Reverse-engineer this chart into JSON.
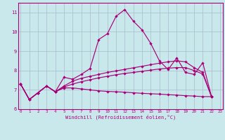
{
  "xlabel": "Windchill (Refroidissement éolien,°C)",
  "xlim": [
    -0.3,
    23.3
  ],
  "ylim": [
    6.0,
    11.5
  ],
  "xticks": [
    0,
    1,
    2,
    3,
    4,
    5,
    6,
    7,
    8,
    9,
    10,
    11,
    12,
    13,
    14,
    15,
    16,
    17,
    18,
    19,
    20,
    21,
    22,
    23
  ],
  "yticks": [
    6,
    7,
    8,
    9,
    10,
    11
  ],
  "bg_color": "#c8e8ec",
  "grid_color": "#aabbcc",
  "line_color": "#aa0077",
  "line1_x": [
    0,
    1,
    2,
    3,
    4,
    5,
    6,
    7,
    8,
    9,
    10,
    11,
    12,
    13,
    14,
    15,
    16,
    17,
    18,
    19,
    20,
    21,
    22
  ],
  "line1_y": [
    7.3,
    6.5,
    6.85,
    7.2,
    6.9,
    7.65,
    7.55,
    7.8,
    8.1,
    9.6,
    9.9,
    10.8,
    11.15,
    10.55,
    10.1,
    9.4,
    8.5,
    8.05,
    8.65,
    7.9,
    7.8,
    8.4,
    6.65
  ],
  "line2_x": [
    0,
    1,
    2,
    3,
    4,
    5,
    6,
    7,
    8,
    9,
    10,
    11,
    12,
    13,
    14,
    15,
    16,
    17,
    18,
    19,
    20,
    21,
    22
  ],
  "line2_y": [
    7.3,
    6.5,
    6.85,
    7.2,
    6.9,
    7.1,
    7.1,
    7.05,
    7.0,
    6.95,
    6.92,
    6.9,
    6.88,
    6.85,
    6.82,
    6.8,
    6.78,
    6.75,
    6.73,
    6.7,
    6.68,
    6.65,
    6.65
  ],
  "line3_x": [
    0,
    1,
    2,
    3,
    4,
    5,
    6,
    7,
    8,
    9,
    10,
    11,
    12,
    13,
    14,
    15,
    16,
    17,
    18,
    19,
    20,
    21,
    22
  ],
  "line3_y": [
    7.3,
    6.5,
    6.85,
    7.2,
    6.9,
    7.15,
    7.3,
    7.42,
    7.52,
    7.62,
    7.7,
    7.78,
    7.85,
    7.9,
    7.96,
    8.02,
    8.08,
    8.12,
    8.15,
    8.15,
    8.0,
    7.82,
    6.65
  ],
  "line4_x": [
    0,
    1,
    2,
    3,
    4,
    5,
    6,
    7,
    8,
    9,
    10,
    11,
    12,
    13,
    14,
    15,
    16,
    17,
    18,
    19,
    20,
    21,
    22
  ],
  "line4_y": [
    7.3,
    6.5,
    6.85,
    7.2,
    6.9,
    7.2,
    7.45,
    7.6,
    7.7,
    7.8,
    7.9,
    7.98,
    8.06,
    8.14,
    8.22,
    8.3,
    8.38,
    8.45,
    8.5,
    8.45,
    8.15,
    7.9,
    6.65
  ]
}
